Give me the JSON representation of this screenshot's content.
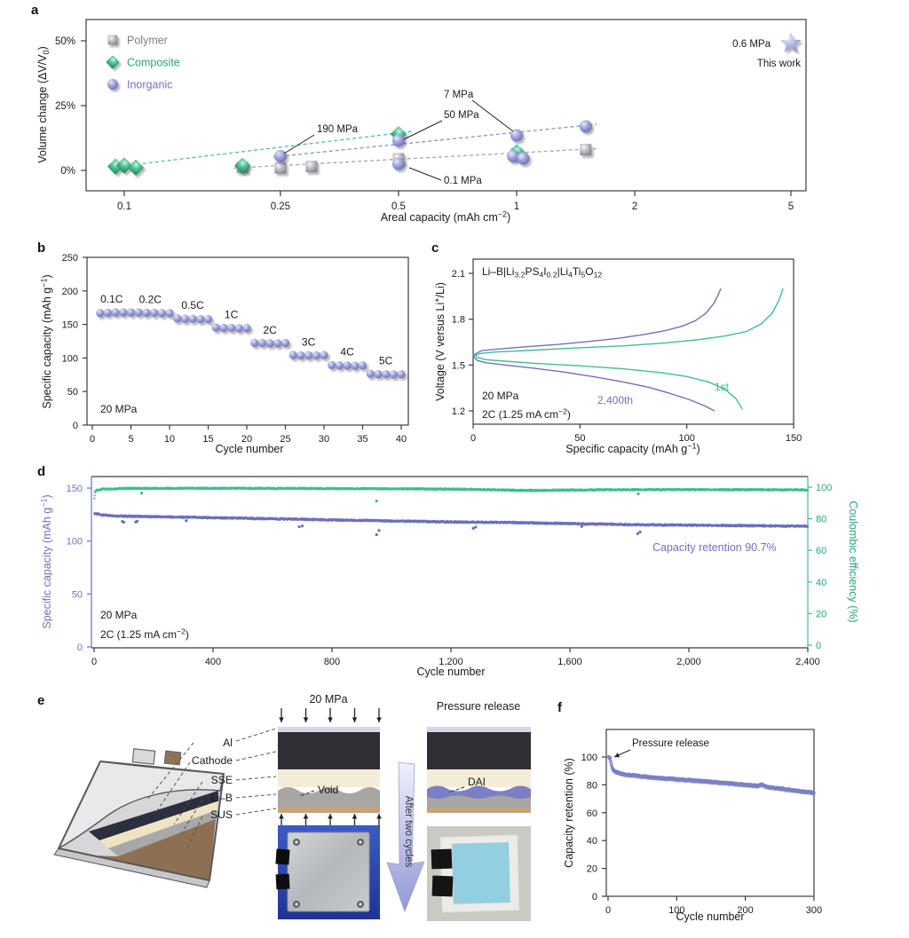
{
  "panel_labels": {
    "a": "a",
    "b": "b",
    "c": "c",
    "d": "d",
    "e": "e",
    "f": "f"
  },
  "panels": {
    "e": {
      "layer_labels": [
        "Al",
        "Cathode",
        "SSE",
        "Li–B",
        "SUS"
      ],
      "stack1_title": "20 MPa",
      "stack2_title": "Pressure release",
      "void_label": "Void",
      "dai_label": "DAI",
      "arrow_label": "After two cycles",
      "colors": {
        "al": "#dad5e4",
        "cathode": "#2f2f36",
        "sse": "#f4ecd7",
        "li_b": "#a8a6a3",
        "sus": "#c4a47d",
        "dai": "#7b80c6",
        "pouch": "#d7d7d9",
        "pouch_flap": "#e9e9ec",
        "pouch_navy": "#2b2f3e",
        "pouch_cream": "#eee3c3",
        "pouch_gray": "#a8a8aa",
        "pouch_brown": "#8d7053",
        "photo1_bg": "#3b5cc4",
        "photo2_bg": "#cbc9c4",
        "photo2_cell": "#92cfe0"
      }
    }
  },
  "chart_data": [
    {
      "id": "a",
      "type": "scatter",
      "x_scale": "log",
      "xlabel": "Areal capacity (mAh cm^−2^)",
      "ylabel": "Volume change (ΔV/V~0~)",
      "x_ticks": [
        0.1,
        0.25,
        0.5,
        1,
        2,
        5
      ],
      "x_tick_labels": [
        "0.1",
        "0.25",
        "0.5",
        "1",
        "2",
        "5"
      ],
      "y_ticks": [
        0,
        25,
        50
      ],
      "y_tick_labels": [
        "0%",
        "25%",
        "50%"
      ],
      "xlim": [
        0.082,
        6.8
      ],
      "ylim": [
        -8,
        58
      ],
      "legend": [
        {
          "label": "Polymer",
          "marker": "square",
          "color": "#7d7d82"
        },
        {
          "label": "Composite",
          "marker": "diamond",
          "color": "#2aa578"
        },
        {
          "label": "Inorganic",
          "marker": "circle",
          "color": "#6d72c0"
        }
      ],
      "series": [
        {
          "name": "Polymer",
          "marker": "square",
          "points": [
            [
              0.2,
              1.2
            ],
            [
              0.25,
              1.0
            ],
            [
              0.3,
              1.5
            ],
            [
              0.5,
              4.5
            ],
            [
              1,
              6.5
            ],
            [
              1.5,
              8
            ]
          ]
        },
        {
          "name": "Composite",
          "marker": "diamond",
          "points": [
            [
              0.095,
              1.5
            ],
            [
              0.1,
              1.9
            ],
            [
              0.107,
              1.1
            ],
            [
              0.2,
              1.8
            ],
            [
              0.5,
              14
            ],
            [
              1,
              7
            ]
          ]
        },
        {
          "name": "Inorganic",
          "marker": "circle",
          "points": [
            [
              0.25,
              5.5
            ],
            [
              0.5,
              11.5
            ],
            [
              0.5,
              2.5
            ],
            [
              0.98,
              5.5
            ],
            [
              1.04,
              4.6
            ],
            [
              1,
              13.5
            ],
            [
              1.5,
              17
            ]
          ]
        },
        {
          "name": "This work",
          "marker": "star",
          "points": [
            [
              5,
              49
            ]
          ]
        }
      ],
      "trend_lines": [
        {
          "color": "#57bd92",
          "from": [
            0.093,
            1.2
          ],
          "to": [
            0.54,
            15
          ]
        },
        {
          "color": "#8a8ed6",
          "from": [
            0.24,
            5.2
          ],
          "to": [
            1.6,
            17.8
          ]
        },
        {
          "color": "#a6a6b4",
          "from": [
            0.19,
            0.9
          ],
          "to": [
            1.6,
            8.4
          ]
        }
      ],
      "annotations": [
        {
          "text": "190 MPa",
          "tx": 357,
          "ty": 149,
          "anchor": "start",
          "line": [
            [
              354,
              152
            ],
            [
              320,
              173
            ]
          ]
        },
        {
          "text": "7 MPa",
          "tx": 500,
          "ty": 110,
          "anchor": "start",
          "line": [
            [
              532,
              113
            ],
            [
              578,
              148
            ]
          ]
        },
        {
          "text": "50 MPa",
          "tx": 500,
          "ty": 133,
          "anchor": "start",
          "line": [
            [
              498,
              136
            ],
            [
              455,
              157
            ]
          ]
        },
        {
          "text": "0.1 MPa",
          "tx": 500,
          "ty": 207,
          "anchor": "start",
          "line": [
            [
              497,
              203
            ],
            [
              461,
              189
            ]
          ]
        },
        {
          "text": "0.6 MPa",
          "tx": 868,
          "ty": 53,
          "anchor": "end"
        },
        {
          "text": "This work",
          "tx": 902,
          "ty": 75,
          "anchor": "end"
        }
      ]
    },
    {
      "id": "b",
      "type": "scatter",
      "xlabel": "Cycle number",
      "ylabel": "Specific capacity (mAh g^−1^)",
      "x_ticks": [
        0,
        5,
        10,
        15,
        20,
        25,
        30,
        35,
        40
      ],
      "y_ticks": [
        0,
        50,
        100,
        150,
        200,
        250
      ],
      "xlim": [
        0,
        41
      ],
      "ylim": [
        0,
        250
      ],
      "note": "20 MPa",
      "values": [
        167,
        167.5,
        168,
        168,
        168,
        168,
        167.5,
        167.5,
        167,
        167,
        159,
        158.5,
        158.5,
        158,
        158,
        145.5,
        145,
        145,
        144.5,
        144.5,
        122.5,
        122.5,
        122,
        122,
        122.5,
        104.5,
        104,
        104,
        104,
        104.5,
        89.5,
        89,
        89,
        88.5,
        89,
        76.5,
        76,
        76,
        75.5,
        76
      ],
      "rate_labels": [
        {
          "text": "0.1C",
          "cycle": 2.5
        },
        {
          "text": "0.2C",
          "cycle": 7.5
        },
        {
          "text": "0.5C",
          "cycle": 13
        },
        {
          "text": "1C",
          "cycle": 18
        },
        {
          "text": "2C",
          "cycle": 23
        },
        {
          "text": "3C",
          "cycle": 28
        },
        {
          "text": "4C",
          "cycle": 33
        },
        {
          "text": "5C",
          "cycle": 38
        }
      ]
    },
    {
      "id": "c",
      "type": "line",
      "title": "Li–B|Li~3.2~PS~4~I~0.2~|Li~4~Ti~5~O~12~",
      "xlabel": "Specific capacity (mAh g^−1^)",
      "ylabel": "Voltage (V versus Li^+^/Li)",
      "x_ticks": [
        0,
        50,
        100,
        150
      ],
      "y_ticks": [
        1.2,
        1.5,
        1.8,
        2.1
      ],
      "notes": [
        "20 MPa",
        "2C (1.25 mA cm^−2^)"
      ],
      "series": [
        {
          "name": "1st",
          "color": "#3fbf90",
          "label_xy": [
            333,
            175
          ],
          "charge": [
            [
              0,
              1.555
            ],
            [
              3,
              1.575
            ],
            [
              10,
              1.585
            ],
            [
              25,
              1.595
            ],
            [
              45,
              1.61
            ],
            [
              70,
              1.625
            ],
            [
              90,
              1.645
            ],
            [
              105,
              1.665
            ],
            [
              118,
              1.69
            ],
            [
              128,
              1.72
            ],
            [
              135,
              1.77
            ],
            [
              140,
              1.84
            ],
            [
              143,
              1.92
            ],
            [
              145,
              2.0
            ]
          ],
          "discharge": [
            [
              0,
              1.57
            ],
            [
              2,
              1.55
            ],
            [
              6,
              1.535
            ],
            [
              15,
              1.525
            ],
            [
              30,
              1.51
            ],
            [
              50,
              1.495
            ],
            [
              70,
              1.475
            ],
            [
              88,
              1.45
            ],
            [
              100,
              1.425
            ],
            [
              110,
              1.39
            ],
            [
              118,
              1.34
            ],
            [
              123,
              1.28
            ],
            [
              126,
              1.21
            ]
          ]
        },
        {
          "name": "2,400th",
          "color": "#6e73bd",
          "label_xy": [
            213,
            190
          ],
          "charge": [
            [
              0,
              1.565
            ],
            [
              4,
              1.595
            ],
            [
              12,
              1.605
            ],
            [
              25,
              1.62
            ],
            [
              40,
              1.635
            ],
            [
              55,
              1.655
            ],
            [
              68,
              1.675
            ],
            [
              80,
              1.7
            ],
            [
              90,
              1.725
            ],
            [
              98,
              1.755
            ],
            [
              104,
              1.79
            ],
            [
              109,
              1.84
            ],
            [
              113,
              1.91
            ],
            [
              116,
              2.0
            ]
          ],
          "discharge": [
            [
              0,
              1.555
            ],
            [
              2,
              1.53
            ],
            [
              6,
              1.515
            ],
            [
              15,
              1.5
            ],
            [
              28,
              1.48
            ],
            [
              42,
              1.455
            ],
            [
              56,
              1.425
            ],
            [
              70,
              1.39
            ],
            [
              82,
              1.355
            ],
            [
              92,
              1.315
            ],
            [
              101,
              1.275
            ],
            [
              108,
              1.235
            ],
            [
              113,
              1.2
            ]
          ]
        }
      ]
    },
    {
      "id": "d",
      "type": "scatter",
      "xlabel": "Cycle number",
      "ylabel_left": "Specific capacity (mAh g^−1^)",
      "ylabel_right": "Coulombic efficiency (%)",
      "x_ticks": [
        0,
        400,
        800,
        1200,
        1600,
        2000,
        2400
      ],
      "x_tick_labels": [
        "0",
        "400",
        "800",
        "1,200",
        "1,600",
        "2,000",
        "2,400"
      ],
      "y_left_ticks": [
        0,
        50,
        100,
        150
      ],
      "y_right_ticks": [
        0,
        20,
        40,
        60,
        80,
        100
      ],
      "colors": {
        "capacity": "#696ec0",
        "efficiency": "#3cbd8e"
      },
      "notes": [
        "20 MPa",
        "2C (1.25 mA cm^−2^)"
      ],
      "annotation": "Capacity retention 90.7%",
      "capacity_keypoints": [
        [
          1,
          126
        ],
        [
          30,
          124.5
        ],
        [
          100,
          123.5
        ],
        [
          200,
          123
        ],
        [
          400,
          122
        ],
        [
          600,
          121
        ],
        [
          800,
          120
        ],
        [
          1000,
          119
        ],
        [
          1200,
          118
        ],
        [
          1400,
          117.5
        ],
        [
          1600,
          116.5
        ],
        [
          1800,
          115.5
        ],
        [
          2000,
          115
        ],
        [
          2200,
          114.5
        ],
        [
          2400,
          114
        ]
      ],
      "efficiency_keypoints": [
        [
          1,
          93
        ],
        [
          3,
          96.5
        ],
        [
          8,
          98
        ],
        [
          30,
          98.8
        ],
        [
          100,
          99.2
        ],
        [
          400,
          99.3
        ],
        [
          700,
          99.2
        ],
        [
          1000,
          99
        ],
        [
          1250,
          98.7
        ],
        [
          1450,
          97.9
        ],
        [
          1600,
          98.2
        ],
        [
          1900,
          98.5
        ],
        [
          2200,
          98.4
        ],
        [
          2400,
          98.3
        ]
      ],
      "capacity_outliers": [
        [
          95,
          118.5
        ],
        [
          100,
          117.8
        ],
        [
          140,
          118
        ],
        [
          145,
          118.7
        ],
        [
          310,
          119.2
        ],
        [
          690,
          113.5
        ],
        [
          700,
          114.2
        ],
        [
          950,
          106
        ],
        [
          958,
          110
        ],
        [
          1275,
          112
        ],
        [
          1283,
          113.2
        ],
        [
          1640,
          113.8
        ],
        [
          1828,
          107
        ],
        [
          1836,
          108.6
        ]
      ],
      "efficiency_outliers": [
        [
          950,
          91.3
        ],
        [
          160,
          96.2
        ],
        [
          1830,
          95.8
        ]
      ]
    },
    {
      "id": "f",
      "type": "scatter",
      "xlabel": "Cycle number",
      "ylabel": "Capacity retention (%)",
      "x_ticks": [
        0,
        100,
        200,
        300
      ],
      "y_ticks": [
        0,
        20,
        40,
        60,
        80,
        100
      ],
      "annotation": "Pressure release",
      "retention_keypoints": [
        [
          1,
          100
        ],
        [
          2,
          99.8
        ],
        [
          3,
          99.4
        ],
        [
          4,
          97
        ],
        [
          5,
          94.5
        ],
        [
          6,
          92.5
        ],
        [
          8,
          90.8
        ],
        [
          10,
          89.8
        ],
        [
          15,
          88.8
        ],
        [
          20,
          88.2
        ],
        [
          30,
          87.4
        ],
        [
          50,
          86.4
        ],
        [
          75,
          85.3
        ],
        [
          100,
          84.3
        ],
        [
          125,
          83.4
        ],
        [
          150,
          82.4
        ],
        [
          175,
          81.4
        ],
        [
          200,
          80.3
        ],
        [
          218,
          79.5
        ],
        [
          224,
          80.6
        ],
        [
          230,
          78.9
        ],
        [
          250,
          77.6
        ],
        [
          275,
          76.1
        ],
        [
          300,
          74.6
        ]
      ]
    }
  ]
}
